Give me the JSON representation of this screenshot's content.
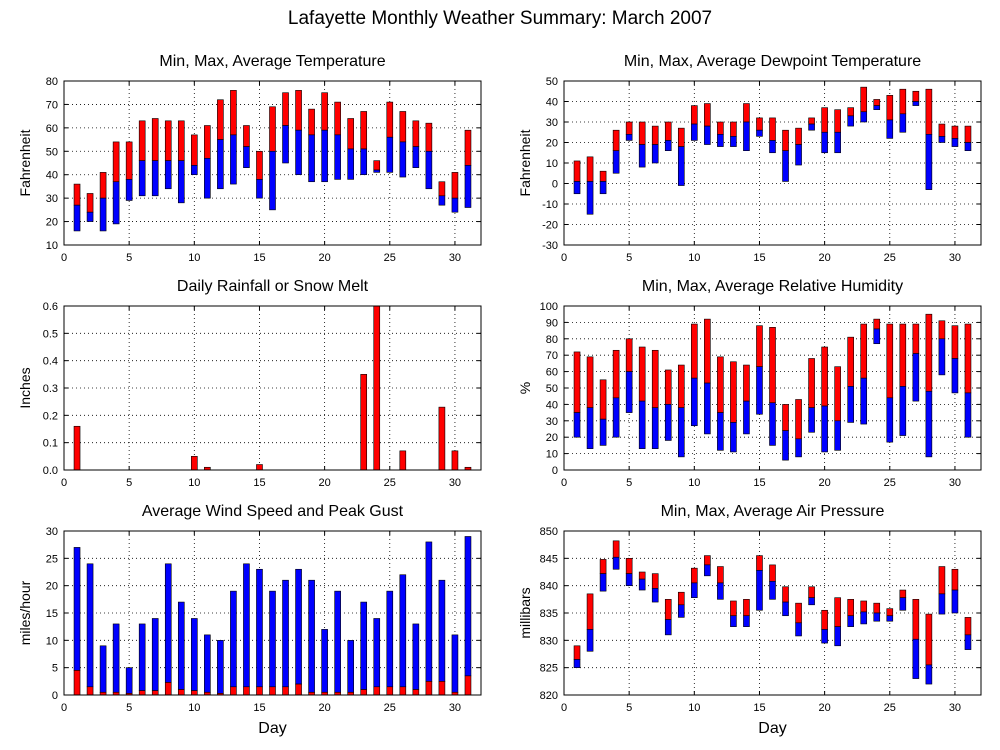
{
  "title": "Lafayette Monthly Weather Summary: March 2007",
  "colors": {
    "red": "#ff0000",
    "blue": "#0000ff",
    "frame": "#000000",
    "grid": "#000000"
  },
  "chart_data": [
    {
      "type": "bar",
      "variant": "range",
      "title": "Min, Max, Average Temperature",
      "xlabel": "",
      "ylabel": "Fahrenheit",
      "xlim": [
        0,
        32
      ],
      "xticks": [
        0,
        5,
        10,
        15,
        20,
        25,
        30
      ],
      "ylim": [
        10,
        80
      ],
      "yticks": [
        10,
        20,
        30,
        40,
        50,
        60,
        70,
        80
      ],
      "grid": true,
      "days": [
        1,
        2,
        3,
        4,
        5,
        6,
        7,
        8,
        9,
        10,
        11,
        12,
        13,
        14,
        15,
        16,
        17,
        18,
        19,
        20,
        21,
        22,
        23,
        24,
        25,
        26,
        27,
        28,
        29,
        30,
        31
      ],
      "series": [
        {
          "name": "",
          "values": [
            36,
            32,
            41,
            54,
            54,
            63,
            64,
            63,
            63,
            57,
            61,
            72,
            76,
            61,
            50,
            69,
            75,
            76,
            68,
            75,
            71,
            64,
            67,
            46,
            71,
            67,
            63,
            62,
            37,
            41,
            59
          ]
        },
        {
          "name": "",
          "values": [
            27,
            24,
            30,
            37,
            38,
            46,
            46,
            46,
            46,
            44,
            47,
            55,
            57,
            52,
            38,
            50,
            61,
            59,
            57,
            59,
            57,
            51,
            51,
            42,
            56,
            54,
            52,
            50,
            31,
            30,
            44
          ]
        },
        {
          "name": "",
          "values": [
            16,
            20,
            16,
            19,
            29,
            31,
            31,
            34,
            28,
            40,
            30,
            34,
            36,
            43,
            30,
            25,
            45,
            40,
            37,
            37,
            38,
            38,
            40,
            41,
            41,
            39,
            43,
            34,
            27,
            24,
            26
          ]
        }
      ]
    },
    {
      "type": "bar",
      "variant": "range",
      "title": "Min, Max, Average Dewpoint Temperature",
      "xlabel": "",
      "ylabel": "Fahrenheit",
      "xlim": [
        0,
        32
      ],
      "xticks": [
        0,
        5,
        10,
        15,
        20,
        25,
        30
      ],
      "ylim": [
        -30,
        50
      ],
      "yticks": [
        -30,
        -20,
        -10,
        0,
        10,
        20,
        30,
        40,
        50
      ],
      "grid": true,
      "days": [
        1,
        2,
        3,
        4,
        5,
        6,
        7,
        8,
        9,
        10,
        11,
        12,
        13,
        14,
        15,
        16,
        17,
        18,
        19,
        20,
        21,
        22,
        23,
        24,
        25,
        26,
        27,
        28,
        29,
        30,
        31
      ],
      "series": [
        {
          "name": "",
          "values": [
            11,
            13,
            6,
            26,
            30,
            30,
            28,
            30,
            27,
            38,
            39,
            30,
            30,
            39,
            32,
            32,
            26,
            27,
            32,
            37,
            36,
            37,
            47,
            41,
            43,
            46,
            45,
            46,
            29,
            28,
            28
          ]
        },
        {
          "name": "",
          "values": [
            1,
            1,
            1,
            16,
            24,
            19,
            19,
            21,
            18,
            29,
            28,
            24,
            23,
            30,
            26,
            21,
            16,
            19,
            29,
            25,
            25,
            33,
            35,
            38,
            31,
            34,
            40,
            24,
            23,
            22,
            20
          ]
        },
        {
          "name": "",
          "values": [
            -5,
            -15,
            -5,
            5,
            21,
            8,
            10,
            16,
            -1,
            21,
            19,
            18,
            18,
            16,
            23,
            15,
            1,
            9,
            26,
            15,
            15,
            28,
            30,
            36,
            22,
            25,
            38,
            -3,
            20,
            18,
            16
          ]
        }
      ]
    },
    {
      "type": "bar",
      "title": "Daily Rainfall or Snow Melt",
      "xlabel": "",
      "ylabel": "Inches",
      "xlim": [
        0,
        32
      ],
      "xticks": [
        0,
        5,
        10,
        15,
        20,
        25,
        30
      ],
      "ylim": [
        0,
        0.6
      ],
      "yticks": [
        0.0,
        0.1,
        0.2,
        0.3,
        0.4,
        0.5,
        0.6
      ],
      "ytick_labels": [
        "0.0",
        "0.1",
        "0.2",
        "0.3",
        "0.4",
        "0.5",
        "0.6"
      ],
      "grid": true,
      "days": [
        1,
        2,
        3,
        4,
        5,
        6,
        7,
        8,
        9,
        10,
        11,
        12,
        13,
        14,
        15,
        16,
        17,
        18,
        19,
        20,
        21,
        22,
        23,
        24,
        25,
        26,
        27,
        28,
        29,
        30,
        31
      ],
      "values": [
        0.16,
        0,
        0,
        0,
        0,
        0,
        0,
        0,
        0,
        0.05,
        0.01,
        0,
        0,
        0,
        0.02,
        0,
        0,
        0,
        0,
        0,
        0,
        0,
        0.35,
        0.6,
        0,
        0.07,
        0,
        0,
        0.23,
        0.07,
        0.01
      ]
    },
    {
      "type": "bar",
      "variant": "range",
      "title": "Min, Max, Average Relative Humidity",
      "xlabel": "",
      "ylabel": "%",
      "xlim": [
        0,
        32
      ],
      "xticks": [
        0,
        5,
        10,
        15,
        20,
        25,
        30
      ],
      "ylim": [
        0,
        100
      ],
      "yticks": [
        0,
        10,
        20,
        30,
        40,
        50,
        60,
        70,
        80,
        90,
        100
      ],
      "grid": true,
      "days": [
        1,
        2,
        3,
        4,
        5,
        6,
        7,
        8,
        9,
        10,
        11,
        12,
        13,
        14,
        15,
        16,
        17,
        18,
        19,
        20,
        21,
        22,
        23,
        24,
        25,
        26,
        27,
        28,
        29,
        30,
        31
      ],
      "series": [
        {
          "name": "",
          "values": [
            72,
            69,
            55,
            73,
            80,
            75,
            73,
            61,
            64,
            89,
            92,
            69,
            66,
            64,
            88,
            87,
            40,
            43,
            68,
            75,
            63,
            81,
            89,
            92,
            89,
            89,
            89,
            95,
            91,
            88,
            89
          ]
        },
        {
          "name": "",
          "values": [
            35,
            38,
            31,
            44,
            60,
            42,
            38,
            40,
            38,
            56,
            53,
            35,
            29,
            42,
            63,
            41,
            24,
            19,
            38,
            39,
            30,
            51,
            56,
            86,
            44,
            51,
            71,
            48,
            80,
            68,
            47
          ]
        },
        {
          "name": "",
          "values": [
            20,
            13,
            15,
            20,
            35,
            13,
            13,
            18,
            8,
            27,
            22,
            12,
            11,
            22,
            34,
            15,
            6,
            8,
            23,
            11,
            12,
            29,
            28,
            77,
            17,
            21,
            42,
            8,
            58,
            47,
            20
          ]
        }
      ]
    },
    {
      "type": "bar",
      "title": "Average Wind Speed and Peak Gust",
      "xlabel": "Day",
      "ylabel": "miles/hour",
      "xlim": [
        0,
        32
      ],
      "xticks": [
        0,
        5,
        10,
        15,
        20,
        25,
        30
      ],
      "ylim": [
        0,
        30
      ],
      "yticks": [
        0,
        5,
        10,
        15,
        20,
        25,
        30
      ],
      "grid": true,
      "days": [
        1,
        2,
        3,
        4,
        5,
        6,
        7,
        8,
        9,
        10,
        11,
        12,
        13,
        14,
        15,
        16,
        17,
        18,
        19,
        20,
        21,
        22,
        23,
        24,
        25,
        26,
        27,
        28,
        29,
        30,
        31
      ],
      "series": [
        {
          "name": "",
          "values": [
            27,
            24,
            9,
            13,
            5,
            13,
            14,
            24,
            17,
            14,
            11,
            10,
            19,
            24,
            23,
            19,
            21,
            23,
            21,
            12,
            19,
            10,
            17,
            14,
            19,
            22,
            13,
            28,
            21,
            11,
            29
          ]
        },
        {
          "name": "",
          "values": [
            4.5,
            1.5,
            0.5,
            0.5,
            0.3,
            0.8,
            0.8,
            2.3,
            1.0,
            0.8,
            0.5,
            0.3,
            1.5,
            1.5,
            1.5,
            1.5,
            1.5,
            2.0,
            0.5,
            0.5,
            0.5,
            0.5,
            1.0,
            1.5,
            1.5,
            1.5,
            1.0,
            2.5,
            2.5,
            0.5,
            3.5
          ]
        }
      ]
    },
    {
      "type": "bar",
      "variant": "range",
      "title": "Min, Max, Average Air Pressure",
      "xlabel": "Day",
      "ylabel": "millibars",
      "xlim": [
        0,
        32
      ],
      "xticks": [
        0,
        5,
        10,
        15,
        20,
        25,
        30
      ],
      "ylim": [
        820,
        850
      ],
      "yticks": [
        820,
        825,
        830,
        835,
        840,
        845,
        850
      ],
      "grid": true,
      "days": [
        1,
        2,
        3,
        4,
        5,
        6,
        7,
        8,
        9,
        10,
        11,
        12,
        13,
        14,
        15,
        16,
        17,
        18,
        19,
        20,
        21,
        22,
        23,
        24,
        25,
        26,
        27,
        28,
        29,
        30,
        31
      ],
      "series": [
        {
          "name": "",
          "values": [
            829,
            838.5,
            844.8,
            848.2,
            845,
            842.5,
            842.2,
            837.5,
            838.8,
            843.2,
            845.5,
            843.5,
            837.2,
            837.5,
            845.5,
            843.8,
            839.8,
            836.8,
            839.8,
            835.5,
            837.8,
            837.5,
            837.2,
            836.8,
            835.8,
            839.2,
            837.5,
            834.8,
            843.5,
            843,
            834.2
          ]
        },
        {
          "name": "",
          "values": [
            826.5,
            832,
            842.2,
            845.2,
            842.2,
            841.2,
            839.5,
            833.8,
            836.5,
            840.5,
            843.8,
            840.5,
            834.5,
            834.5,
            842.8,
            840.8,
            837,
            833.2,
            837.8,
            832,
            832.5,
            834.5,
            835.2,
            835,
            834.5,
            837.8,
            830.2,
            825.5,
            838.5,
            839.2,
            831
          ]
        },
        {
          "name": "",
          "values": [
            825,
            828,
            839,
            843,
            840,
            839.2,
            837,
            831,
            834.2,
            837.8,
            841.8,
            837.5,
            832.5,
            832.5,
            835.5,
            837.5,
            834.5,
            830.8,
            836.5,
            829.5,
            829,
            832.5,
            833,
            833.5,
            833.5,
            835.5,
            823,
            822,
            834.8,
            835,
            828.3
          ]
        }
      ]
    }
  ]
}
